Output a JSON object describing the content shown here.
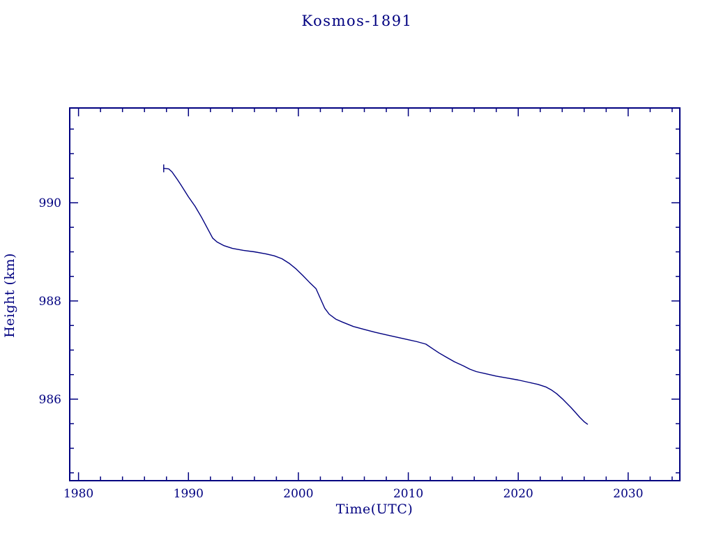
{
  "title": "Kosmos-1891",
  "chart_data": {
    "type": "line",
    "title": "Kosmos-1891",
    "xlabel": "Time(UTC)",
    "ylabel": "Height (km)",
    "xlim": [
      1979.2,
      2034.7
    ],
    "ylim": [
      984.34,
      991.93
    ],
    "x_major_ticks": [
      1980,
      1990,
      2000,
      2010,
      2020,
      2030
    ],
    "x_minor_step": 2,
    "y_major_ticks": [
      986,
      988,
      990
    ],
    "y_minor_step": 0.5,
    "grid": false,
    "legend": "none",
    "line_color": "#000080",
    "frame_color": "#000080",
    "start_marker": {
      "x": 1987.75,
      "y": 990.7,
      "half_height": 0.08
    },
    "series": [
      {
        "name": "Height",
        "x": [
          1987.75,
          1988.2,
          1988.5,
          1989.0,
          1989.3,
          1990.0,
          1990.6,
          1991.2,
          1991.8,
          1992.2,
          1992.6,
          1993.2,
          1994.0,
          1995.0,
          1996.0,
          1997.0,
          1997.8,
          1998.5,
          1999.2,
          1999.8,
          2000.4,
          2001.0,
          2001.6,
          2002.0,
          2002.4,
          2002.8,
          2003.4,
          2004.0,
          2005.0,
          2006.0,
          2007.0,
          2008.0,
          2009.0,
          2010.0,
          2010.8,
          2011.6,
          2012.2,
          2012.8,
          2013.5,
          2014.2,
          2015.0,
          2015.6,
          2016.2,
          2017.0,
          2018.0,
          2019.0,
          2020.0,
          2021.0,
          2021.8,
          2022.5,
          2023.0,
          2023.5,
          2024.0,
          2024.4,
          2024.8,
          2025.2,
          2025.6,
          2026.0,
          2026.3
        ],
        "y": [
          990.7,
          990.69,
          990.63,
          990.47,
          990.37,
          990.12,
          989.93,
          989.7,
          989.45,
          989.28,
          989.2,
          989.13,
          989.07,
          989.03,
          989.0,
          988.96,
          988.92,
          988.86,
          988.76,
          988.65,
          988.52,
          988.38,
          988.25,
          988.05,
          987.85,
          987.73,
          987.63,
          987.57,
          987.48,
          987.42,
          987.36,
          987.31,
          987.26,
          987.21,
          987.17,
          987.12,
          987.03,
          986.94,
          986.85,
          986.76,
          986.68,
          986.61,
          986.56,
          986.52,
          986.47,
          986.43,
          986.39,
          986.34,
          986.3,
          986.25,
          986.19,
          986.11,
          986.01,
          985.92,
          985.83,
          985.73,
          985.63,
          985.54,
          985.49
        ]
      }
    ]
  }
}
